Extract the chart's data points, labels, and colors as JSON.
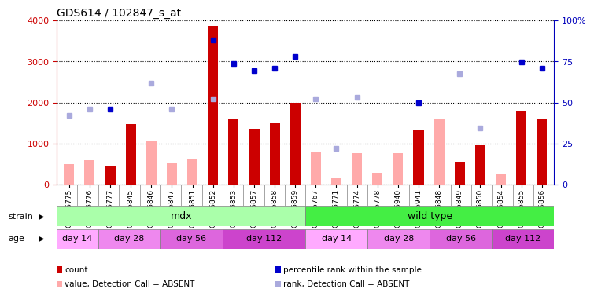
{
  "title": "GDS614 / 102847_s_at",
  "samples": [
    "GSM15775",
    "GSM15776",
    "GSM15777",
    "GSM15845",
    "GSM15846",
    "GSM15847",
    "GSM15851",
    "GSM15852",
    "GSM15853",
    "GSM15857",
    "GSM15858",
    "GSM15859",
    "GSM15767",
    "GSM15771",
    "GSM15774",
    "GSM15778",
    "GSM15940",
    "GSM15941",
    "GSM15848",
    "GSM15849",
    "GSM15850",
    "GSM15854",
    "GSM15855",
    "GSM15856"
  ],
  "count_values": [
    null,
    null,
    450,
    1470,
    null,
    null,
    null,
    3870,
    1580,
    1360,
    1490,
    2000,
    null,
    null,
    null,
    null,
    null,
    1320,
    null,
    560,
    950,
    null,
    1780,
    1580
  ],
  "count_absent_values": [
    490,
    600,
    null,
    null,
    1070,
    530,
    630,
    null,
    null,
    null,
    null,
    null,
    800,
    150,
    770,
    280,
    770,
    null,
    1580,
    null,
    null,
    250,
    null,
    null
  ],
  "percentile_rank_values": [
    null,
    null,
    1840,
    null,
    null,
    null,
    null,
    3520,
    2950,
    2770,
    2830,
    3120,
    null,
    null,
    null,
    null,
    null,
    2000,
    null,
    null,
    null,
    null,
    2980,
    2840
  ],
  "rank_absent_values": [
    1680,
    1830,
    null,
    null,
    2480,
    1840,
    null,
    2080,
    null,
    null,
    null,
    null,
    2080,
    870,
    2120,
    null,
    null,
    null,
    null,
    2700,
    1370,
    null,
    null,
    null
  ],
  "ylim_left": [
    0,
    4000
  ],
  "ylim_right": [
    0,
    100
  ],
  "yticks_left": [
    0,
    1000,
    2000,
    3000,
    4000
  ],
  "yticks_right": [
    0,
    25,
    50,
    75,
    100
  ],
  "bar_color_red": "#cc0000",
  "bar_color_pink": "#ffaaaa",
  "dot_color_blue": "#0000cc",
  "dot_color_lightblue": "#aaaadd",
  "strain_mdx_color": "#aaffaa",
  "strain_wt_color": "#44ee44",
  "age_groups": [
    {
      "label": "day 14",
      "start": 0,
      "end": 2,
      "color": "#ffaaff"
    },
    {
      "label": "day 28",
      "start": 2,
      "end": 5,
      "color": "#ee88ee"
    },
    {
      "label": "day 56",
      "start": 5,
      "end": 8,
      "color": "#dd66dd"
    },
    {
      "label": "day 112",
      "start": 8,
      "end": 12,
      "color": "#cc44cc"
    },
    {
      "label": "day 14",
      "start": 12,
      "end": 15,
      "color": "#ffaaff"
    },
    {
      "label": "day 28",
      "start": 15,
      "end": 18,
      "color": "#ee88ee"
    },
    {
      "label": "day 56",
      "start": 18,
      "end": 21,
      "color": "#dd66dd"
    },
    {
      "label": "day 112",
      "start": 21,
      "end": 24,
      "color": "#cc44cc"
    }
  ],
  "bg_color": "white",
  "axis_color_left": "#cc0000",
  "axis_color_right": "#0000bb",
  "legend_items": [
    {
      "color": "#cc0000",
      "label": "count",
      "marker": "rect"
    },
    {
      "color": "#0000cc",
      "label": "percentile rank within the sample",
      "marker": "rect"
    },
    {
      "color": "#ffaaaa",
      "label": "value, Detection Call = ABSENT",
      "marker": "rect"
    },
    {
      "color": "#aaaadd",
      "label": "rank, Detection Call = ABSENT",
      "marker": "rect"
    }
  ]
}
